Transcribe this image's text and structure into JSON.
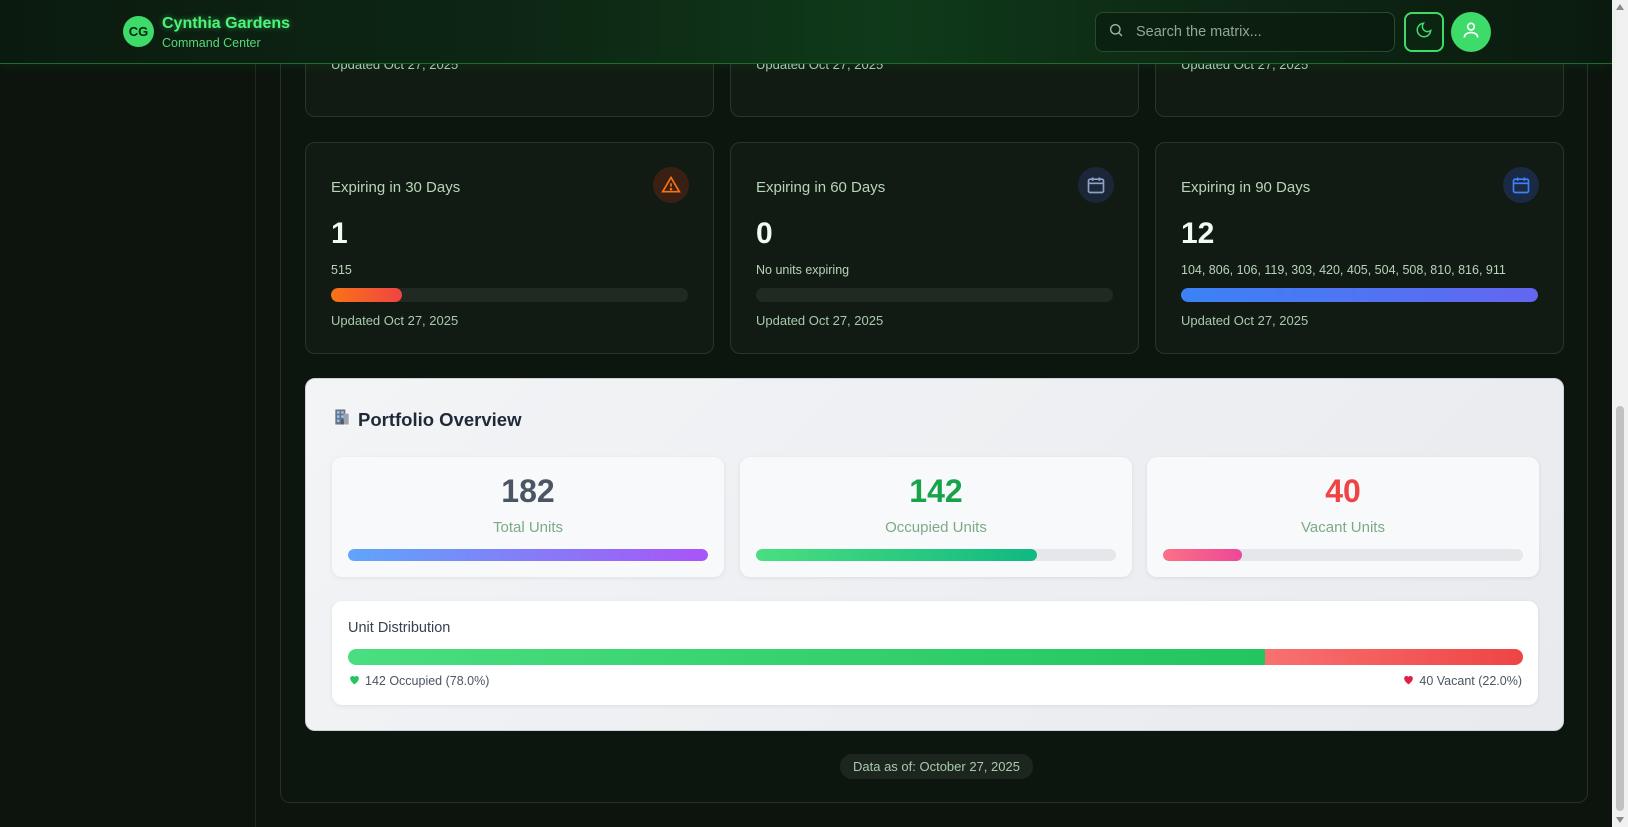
{
  "header": {
    "logo_initials": "CG",
    "title": "Cynthia Gardens",
    "subtitle": "Command Center",
    "search_placeholder": "Search the matrix...",
    "theme_icon": "moon-icon",
    "user_icon": "user-icon"
  },
  "top_cards": [
    {
      "updated": "Updated Oct 27, 2025"
    },
    {
      "updated": "Updated Oct 27, 2025"
    },
    {
      "updated": "Updated Oct 27, 2025"
    }
  ],
  "expiry_cards": [
    {
      "label": "Expiring in 30 Days",
      "value": "1",
      "units": "515",
      "progress": 0.2,
      "updated": "Updated Oct 27, 2025",
      "icon": "warning-icon"
    },
    {
      "label": "Expiring in 60 Days",
      "value": "0",
      "units": "No units expiring",
      "progress": 0,
      "updated": "Updated Oct 27, 2025",
      "icon": "calendar-icon"
    },
    {
      "label": "Expiring in 90 Days",
      "value": "12",
      "units": "104, 806, 106, 119, 303, 420, 405, 504, 508, 810, 816, 911",
      "progress": 1,
      "updated": "Updated Oct 27, 2025",
      "icon": "calendar-icon"
    }
  ],
  "portfolio": {
    "title": "Portfolio Overview",
    "icon": "building-icon",
    "stats": [
      {
        "value": "182",
        "label": "Total Units",
        "progress": 1,
        "color": "#4b5563"
      },
      {
        "value": "142",
        "label": "Occupied Units",
        "progress": 0.78,
        "color": "#16a34a"
      },
      {
        "value": "40",
        "label": "Vacant Units",
        "progress": 0.22,
        "color": "#ef4444"
      }
    ],
    "distribution": {
      "title": "Unit Distribution",
      "occupied_fraction": 0.78,
      "occupied_label": "142 Occupied (78.0%)",
      "vacant_label": "40 Vacant (22.0%)"
    }
  },
  "footer": {
    "data_as_of": "Data as of: October 27, 2025"
  },
  "colors": {
    "accent": "#3ddc6a",
    "warning": "#f97316",
    "info": "#3b82f6"
  }
}
